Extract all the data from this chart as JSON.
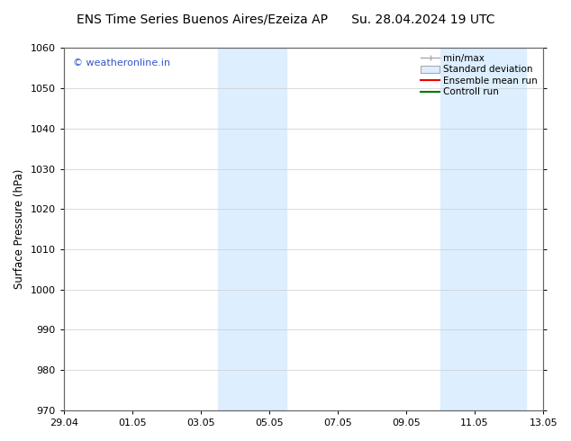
{
  "title_left": "ENS Time Series Buenos Aires/Ezeiza AP",
  "title_right": "Su. 28.04.2024 19 UTC",
  "ylabel": "Surface Pressure (hPa)",
  "ylim": [
    970,
    1060
  ],
  "yticks": [
    970,
    980,
    990,
    1000,
    1010,
    1020,
    1030,
    1040,
    1050,
    1060
  ],
  "xtick_labels": [
    "29.04",
    "01.05",
    "03.05",
    "05.05",
    "07.05",
    "09.05",
    "11.05",
    "13.05"
  ],
  "xtick_positions": [
    0,
    2,
    4,
    6,
    8,
    10,
    12,
    14
  ],
  "shaded_regions": [
    {
      "xstart": 4.5,
      "xend": 6.5
    },
    {
      "xstart": 11.0,
      "xend": 13.5
    }
  ],
  "shaded_color": "#ddeeff",
  "watermark_text": "© weatheronline.in",
  "watermark_color": "#3355cc",
  "legend_items": [
    {
      "label": "min/max",
      "color": "#aaaaaa",
      "style": "minmax"
    },
    {
      "label": "Standard deviation",
      "color": "#cccccc",
      "style": "stddev"
    },
    {
      "label": "Ensemble mean run",
      "color": "#ee0000",
      "style": "line"
    },
    {
      "label": "Controll run",
      "color": "#007700",
      "style": "line"
    }
  ],
  "title_fontsize": 10,
  "tick_fontsize": 8,
  "label_fontsize": 8.5,
  "legend_fontsize": 7.5,
  "bg_color": "#ffffff",
  "grid_color": "#cccccc"
}
